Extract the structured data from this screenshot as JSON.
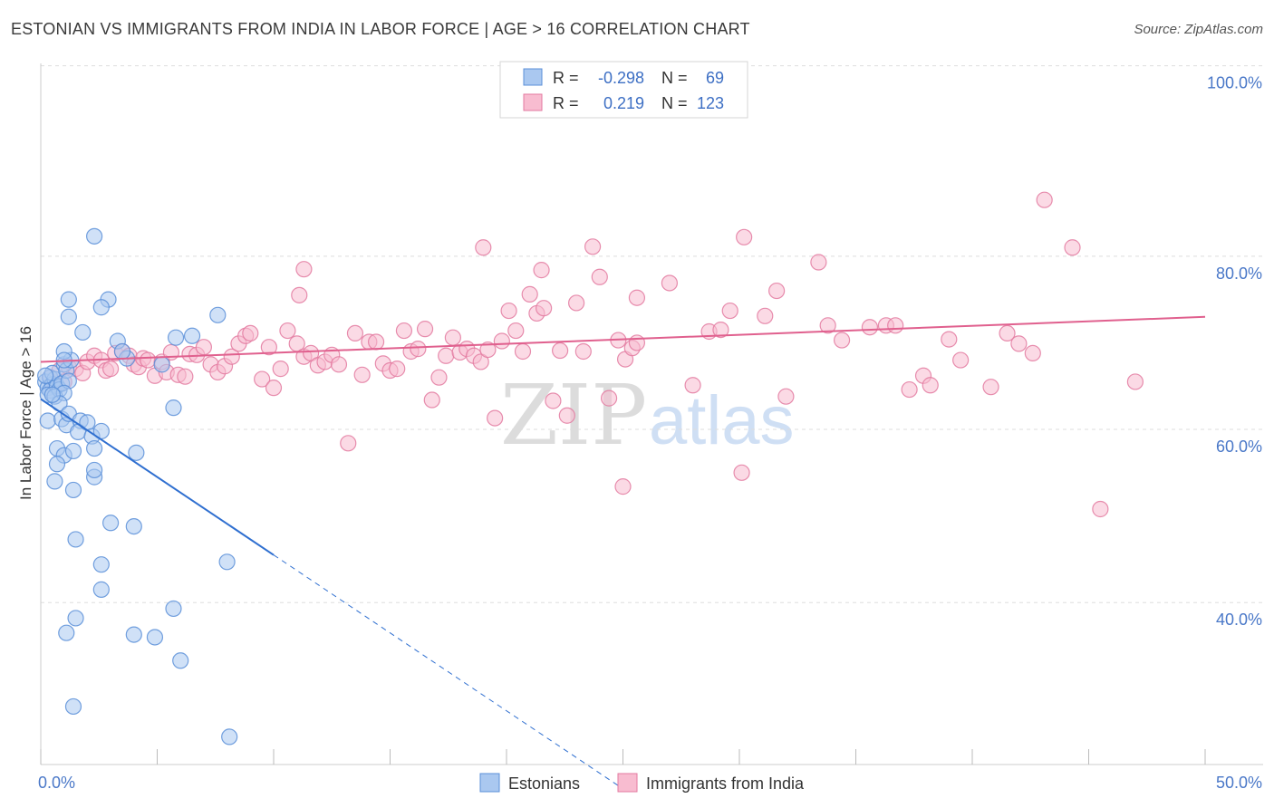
{
  "title": "ESTONIAN VS IMMIGRANTS FROM INDIA IN LABOR FORCE | AGE > 16 CORRELATION CHART",
  "source": "Source: ZipAtlas.com",
  "watermark": {
    "zip": "ZIP",
    "atlas": "atlas"
  },
  "legend_box": {
    "rows": [
      {
        "r_label": "R =",
        "r_value": "-0.298",
        "n_label": "N =",
        "n_value": "69"
      },
      {
        "r_label": "R =",
        "r_value": "0.219",
        "n_label": "N =",
        "n_value": "123"
      }
    ]
  },
  "colors": {
    "blue_fill": "#aac8f0",
    "blue_stroke": "#5b8fd8",
    "blue_line": "#2f6fd0",
    "pink_fill": "#f8bcd0",
    "pink_stroke": "#e37aa0",
    "pink_line": "#e0608e",
    "tick_text": "#4a78c8",
    "grid": "#dddddd"
  },
  "chart_data": {
    "type": "scatter",
    "title": "ESTONIAN VS IMMIGRANTS FROM INDIA IN LABOR FORCE | AGE > 16 CORRELATION CHART",
    "xlabel": "",
    "ylabel": "In Labor Force | Age > 16",
    "xlim": [
      0,
      50
    ],
    "ylim": [
      20,
      102
    ],
    "x_ticks": [
      "0.0%",
      "50.0%"
    ],
    "y_ticks": [
      {
        "value": 100,
        "label": "100.0%"
      },
      {
        "value": 80,
        "label": "80.0%"
      },
      {
        "value": 60,
        "label": "60.0%"
      },
      {
        "value": 40,
        "label": "40.0%"
      }
    ],
    "grid": true,
    "legend_placement": "bottom-center",
    "series": [
      {
        "name": "Estonians",
        "color": "#aac8f0",
        "r": -0.298,
        "n": 69,
        "trend": {
          "x0": 0.0,
          "y0": 63.5,
          "x1": 10.0,
          "y1": 45.5,
          "dashed_to_x": 25.0
        },
        "points": [
          [
            0.2,
            65.5
          ],
          [
            0.3,
            64.8
          ],
          [
            0.4,
            66.0
          ],
          [
            0.5,
            65.2
          ],
          [
            0.4,
            64.5
          ],
          [
            0.6,
            65.8
          ],
          [
            0.3,
            64.0
          ],
          [
            0.7,
            65.0
          ],
          [
            0.5,
            66.5
          ],
          [
            0.8,
            64.6
          ],
          [
            0.6,
            63.8
          ],
          [
            0.2,
            66.2
          ],
          [
            0.9,
            65.3
          ],
          [
            1.0,
            67.5
          ],
          [
            1.1,
            66.8
          ],
          [
            1.2,
            65.6
          ],
          [
            1.0,
            64.2
          ],
          [
            0.8,
            63.0
          ],
          [
            1.3,
            68.0
          ],
          [
            1.0,
            69.0
          ],
          [
            0.3,
            61.0
          ],
          [
            0.9,
            61.2
          ],
          [
            1.1,
            60.5
          ],
          [
            1.2,
            61.8
          ],
          [
            1.7,
            61.0
          ],
          [
            1.6,
            59.7
          ],
          [
            2.0,
            60.8
          ],
          [
            2.2,
            59.2
          ],
          [
            2.6,
            59.8
          ],
          [
            0.7,
            57.8
          ],
          [
            1.0,
            57.0
          ],
          [
            1.4,
            57.5
          ],
          [
            2.3,
            57.8
          ],
          [
            0.7,
            56.0
          ],
          [
            0.6,
            54.0
          ],
          [
            2.3,
            54.5
          ],
          [
            2.3,
            55.3
          ],
          [
            4.1,
            57.3
          ],
          [
            1.4,
            53.0
          ],
          [
            3.0,
            49.2
          ],
          [
            4.0,
            48.8
          ],
          [
            1.5,
            47.3
          ],
          [
            2.6,
            44.4
          ],
          [
            8.0,
            44.7
          ],
          [
            2.6,
            41.5
          ],
          [
            5.7,
            39.3
          ],
          [
            1.5,
            38.2
          ],
          [
            1.1,
            36.5
          ],
          [
            4.0,
            36.3
          ],
          [
            4.9,
            36.0
          ],
          [
            6.0,
            33.3
          ],
          [
            1.4,
            28.0
          ],
          [
            8.1,
            24.5
          ],
          [
            2.3,
            82.3
          ],
          [
            1.2,
            75.0
          ],
          [
            2.9,
            75.0
          ],
          [
            2.6,
            74.1
          ],
          [
            1.2,
            73.0
          ],
          [
            7.6,
            73.2
          ],
          [
            1.8,
            71.2
          ],
          [
            3.3,
            70.2
          ],
          [
            5.8,
            70.6
          ],
          [
            6.5,
            70.8
          ],
          [
            3.7,
            68.2
          ],
          [
            5.2,
            67.5
          ],
          [
            5.7,
            62.5
          ],
          [
            1.0,
            68.0
          ],
          [
            3.5,
            69.0
          ],
          [
            0.5,
            64.0
          ]
        ]
      },
      {
        "name": "Immigrants from India",
        "color": "#f8bcd0",
        "r": 0.219,
        "n": 123,
        "trend": {
          "x0": 0.0,
          "y0": 67.8,
          "x1": 50.0,
          "y1": 73.0
        },
        "points": [
          [
            0.4,
            66.0
          ],
          [
            0.6,
            65.0
          ],
          [
            0.8,
            66.8
          ],
          [
            1.0,
            65.5
          ],
          [
            1.2,
            67.2
          ],
          [
            1.5,
            67.0
          ],
          [
            1.8,
            66.5
          ],
          [
            2.0,
            67.8
          ],
          [
            2.3,
            68.5
          ],
          [
            2.6,
            68.0
          ],
          [
            2.8,
            66.8
          ],
          [
            3.0,
            67.0
          ],
          [
            3.2,
            68.8
          ],
          [
            3.5,
            69.0
          ],
          [
            3.8,
            68.5
          ],
          [
            4.0,
            67.5
          ],
          [
            4.2,
            67.2
          ],
          [
            4.4,
            68.2
          ],
          [
            4.6,
            68.0
          ],
          [
            4.9,
            66.2
          ],
          [
            5.2,
            67.8
          ],
          [
            5.4,
            66.6
          ],
          [
            5.6,
            68.9
          ],
          [
            5.9,
            66.3
          ],
          [
            6.2,
            66.1
          ],
          [
            6.4,
            68.7
          ],
          [
            6.7,
            68.6
          ],
          [
            7.0,
            69.5
          ],
          [
            7.3,
            67.5
          ],
          [
            7.6,
            66.6
          ],
          [
            7.9,
            67.3
          ],
          [
            8.2,
            68.4
          ],
          [
            8.5,
            69.9
          ],
          [
            8.8,
            70.8
          ],
          [
            9.0,
            71.1
          ],
          [
            9.5,
            65.8
          ],
          [
            9.8,
            69.5
          ],
          [
            10.0,
            64.8
          ],
          [
            10.3,
            67.0
          ],
          [
            10.6,
            71.4
          ],
          [
            11.0,
            69.9
          ],
          [
            11.3,
            68.4
          ],
          [
            11.6,
            68.8
          ],
          [
            11.9,
            67.4
          ],
          [
            12.2,
            67.8
          ],
          [
            12.5,
            68.6
          ],
          [
            12.8,
            67.5
          ],
          [
            13.2,
            58.4
          ],
          [
            13.5,
            71.1
          ],
          [
            13.8,
            66.3
          ],
          [
            14.1,
            70.1
          ],
          [
            14.4,
            70.1
          ],
          [
            14.7,
            67.6
          ],
          [
            15.0,
            66.8
          ],
          [
            15.3,
            67.0
          ],
          [
            15.6,
            71.4
          ],
          [
            15.9,
            69.0
          ],
          [
            16.2,
            69.3
          ],
          [
            16.5,
            71.6
          ],
          [
            16.8,
            63.4
          ],
          [
            17.1,
            66.0
          ],
          [
            17.4,
            68.5
          ],
          [
            17.7,
            70.6
          ],
          [
            18.0,
            68.9
          ],
          [
            18.3,
            69.3
          ],
          [
            18.6,
            68.5
          ],
          [
            18.9,
            67.8
          ],
          [
            19.2,
            69.2
          ],
          [
            19.5,
            61.3
          ],
          [
            19.8,
            70.2
          ],
          [
            20.1,
            73.7
          ],
          [
            20.4,
            71.4
          ],
          [
            20.7,
            69.0
          ],
          [
            21.0,
            75.6
          ],
          [
            21.3,
            73.4
          ],
          [
            21.6,
            74.0
          ],
          [
            19.0,
            81.0
          ],
          [
            22.0,
            63.3
          ],
          [
            22.3,
            69.1
          ],
          [
            22.6,
            61.6
          ],
          [
            23.0,
            74.6
          ],
          [
            23.3,
            69.0
          ],
          [
            23.7,
            81.1
          ],
          [
            24.0,
            77.6
          ],
          [
            24.4,
            63.6
          ],
          [
            24.8,
            70.3
          ],
          [
            25.1,
            68.1
          ],
          [
            25.4,
            69.4
          ],
          [
            25.6,
            70.0
          ],
          [
            25.0,
            53.4
          ],
          [
            27.0,
            76.9
          ],
          [
            25.6,
            75.2
          ],
          [
            28.0,
            65.1
          ],
          [
            28.7,
            71.3
          ],
          [
            29.2,
            71.5
          ],
          [
            29.6,
            73.7
          ],
          [
            30.2,
            82.2
          ],
          [
            30.1,
            55.0
          ],
          [
            31.1,
            73.1
          ],
          [
            31.6,
            76.0
          ],
          [
            32.0,
            63.8
          ],
          [
            33.4,
            79.3
          ],
          [
            33.8,
            72.0
          ],
          [
            34.4,
            70.3
          ],
          [
            35.6,
            71.8
          ],
          [
            36.3,
            72.0
          ],
          [
            36.7,
            72.0
          ],
          [
            37.3,
            64.6
          ],
          [
            37.9,
            66.2
          ],
          [
            38.2,
            65.1
          ],
          [
            39.0,
            70.4
          ],
          [
            39.5,
            68.0
          ],
          [
            40.8,
            64.9
          ],
          [
            41.5,
            71.1
          ],
          [
            42.0,
            69.9
          ],
          [
            42.6,
            68.8
          ],
          [
            43.1,
            86.5
          ],
          [
            44.3,
            81.0
          ],
          [
            45.5,
            50.8
          ],
          [
            47.0,
            65.5
          ],
          [
            21.5,
            78.4
          ],
          [
            11.1,
            75.5
          ],
          [
            11.3,
            78.5
          ]
        ]
      }
    ]
  }
}
